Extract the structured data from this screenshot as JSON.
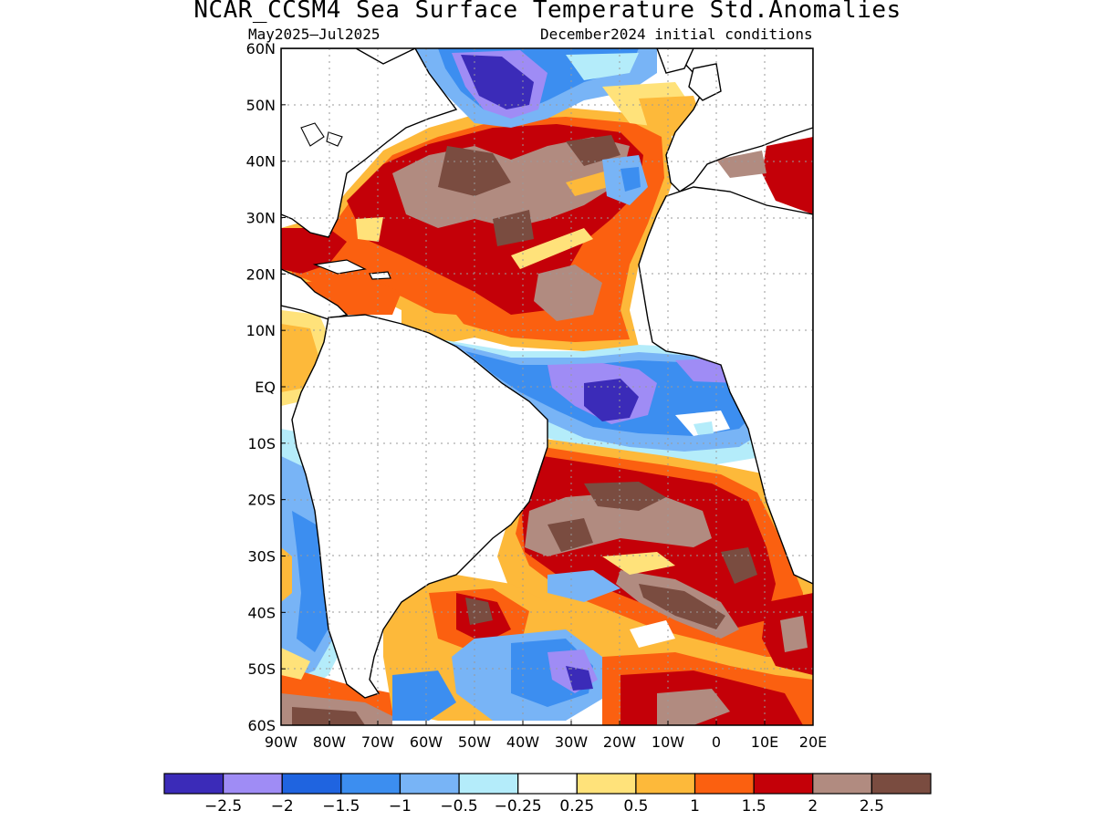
{
  "title": "NCAR_CCSM4 Sea Surface Temperature Std.Anomalies",
  "subtitle_left": "May2025–Jul2025",
  "subtitle_right": "December2024 initial conditions",
  "lat_ticks": [
    "60N",
    "50N",
    "40N",
    "30N",
    "20N",
    "10N",
    "EQ",
    "10S",
    "20S",
    "30S",
    "40S",
    "50S",
    "60S"
  ],
  "lon_ticks": [
    "90W",
    "80W",
    "70W",
    "60W",
    "50W",
    "40W",
    "30W",
    "20W",
    "10W",
    "0",
    "10E",
    "20E"
  ],
  "colorbar": {
    "colors": [
      "#3b2bb8",
      "#9f8cf5",
      "#1f64e0",
      "#3c8ef0",
      "#78b4f6",
      "#b4ecfa",
      "#ffffff",
      "#ffe27a",
      "#fdb93a",
      "#fb6010",
      "#c40008",
      "#b18b80",
      "#7a4c40"
    ],
    "labels": [
      "−2.5",
      "−2",
      "−1.5",
      "−1",
      "−0.5",
      "−0.25",
      "0.25",
      "0.5",
      "1",
      "1.5",
      "2",
      "2.5"
    ]
  },
  "map_extent": {
    "lon": [
      -90,
      20
    ],
    "lat": [
      -60,
      60
    ]
  },
  "land_color": "#ffffff",
  "coast_color": "#000000",
  "grid": true
}
